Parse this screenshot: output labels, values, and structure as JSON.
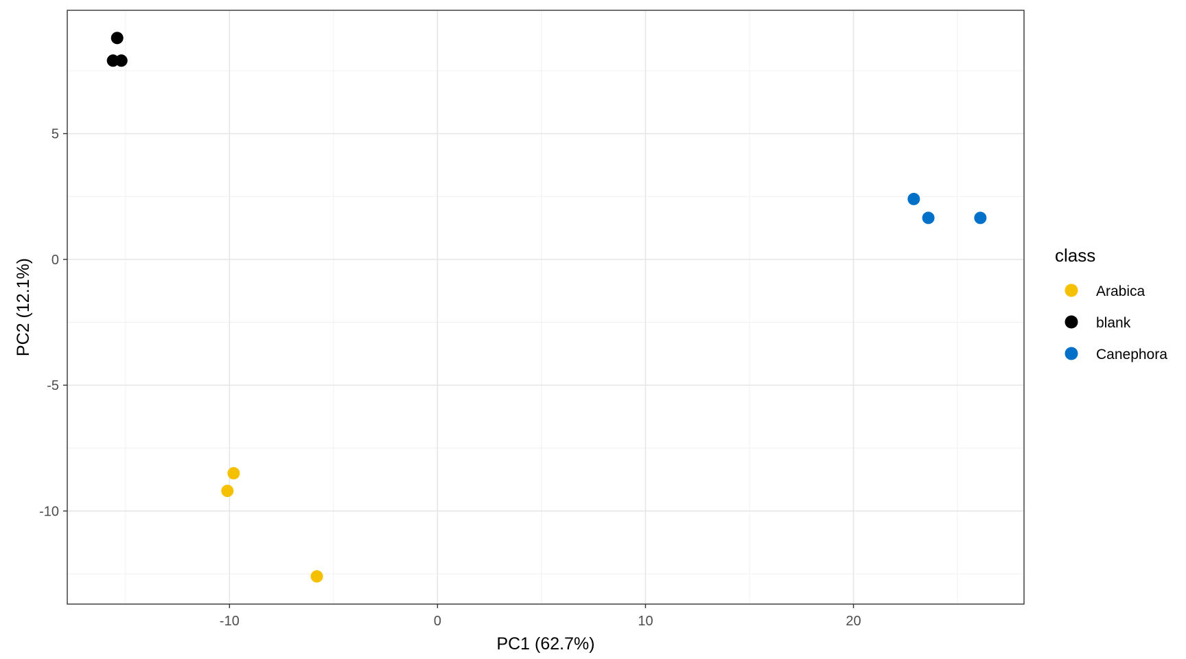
{
  "chart_data": {
    "type": "scatter",
    "title": "",
    "xlabel": "PC1 (62.7%)",
    "ylabel": "PC2 (12.1%)",
    "xlim": [
      -17.8,
      28.2
    ],
    "ylim": [
      -13.7,
      9.9
    ],
    "x_ticks": [
      -10,
      0,
      10,
      20
    ],
    "x_tick_labels": [
      "-10",
      "0",
      "10",
      "20"
    ],
    "y_ticks": [
      -10,
      -5,
      0,
      5
    ],
    "y_tick_labels": [
      "-10",
      "-5",
      "0",
      "5"
    ],
    "grid": true,
    "legend_position": "right",
    "legend_title": "class",
    "series": [
      {
        "name": "Arabica",
        "color": "#F5C000",
        "points": [
          [
            -9.8,
            -8.5
          ],
          [
            -10.1,
            -9.2
          ],
          [
            -5.8,
            -12.6
          ]
        ]
      },
      {
        "name": "blank",
        "color": "#000000",
        "points": [
          [
            -15.4,
            8.8
          ],
          [
            -15.6,
            7.9
          ],
          [
            -15.2,
            7.9
          ]
        ]
      },
      {
        "name": "Canephora",
        "color": "#0070C8",
        "points": [
          [
            22.9,
            2.4
          ],
          [
            23.6,
            1.65
          ],
          [
            26.1,
            1.65
          ]
        ]
      }
    ]
  }
}
